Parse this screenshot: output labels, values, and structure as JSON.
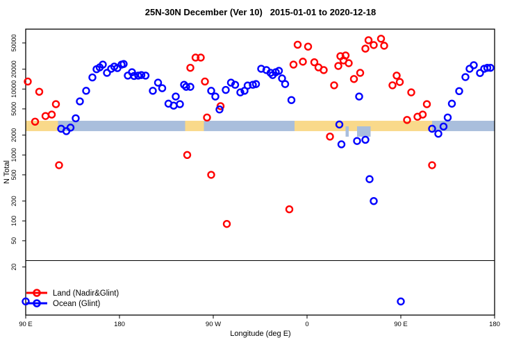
{
  "chart_data": {
    "type": "scatter",
    "title": "25N-30N December (Ver 10)   2015-01-01 to 2020-12-18",
    "xlabel": "Longitude (deg E)",
    "ylabel": "N Total",
    "x_axis": {
      "range_deg": [
        90,
        540
      ],
      "ticks": [
        {
          "deg": 90,
          "label": "90 E"
        },
        {
          "deg": 180,
          "label": "180"
        },
        {
          "deg": 270,
          "label": "90 W"
        },
        {
          "deg": 360,
          "label": "0"
        },
        {
          "deg": 450,
          "label": "90 E"
        },
        {
          "deg": 540,
          "label": "180"
        }
      ]
    },
    "y_axis": {
      "scale": "log10",
      "range": [
        4,
        80000
      ],
      "ticks": [
        20,
        50,
        100,
        200,
        500,
        1000,
        2000,
        5000,
        10000,
        20000,
        50000
      ]
    },
    "reference_line": {
      "y_value": 25,
      "color": "#000000"
    },
    "map_band": {
      "description": "land/ocean strip for 25N-30N latitude",
      "y_value_top": 3300,
      "y_value_bottom": 2300,
      "land_color": "#F9D98A",
      "ocean_color": "#A9BEDC",
      "segments": [
        {
          "from": 90,
          "to": 121,
          "type": "land"
        },
        {
          "from": 121,
          "to": 243,
          "type": "ocean"
        },
        {
          "from": 243,
          "to": 261,
          "type": "land"
        },
        {
          "from": 261,
          "to": 348,
          "type": "ocean"
        },
        {
          "from": 348,
          "to": 480,
          "type": "land"
        },
        {
          "from": 480,
          "to": 540,
          "type": "ocean"
        }
      ],
      "ocean_patches_below": [
        {
          "from": 397,
          "to": 400
        },
        {
          "from": 408,
          "to": 421
        }
      ]
    },
    "series": [
      {
        "name": "Land (Nadir&Glint)",
        "color": "#FF0000",
        "marker": "open-circle",
        "points": [
          [
            92,
            13000
          ],
          [
            103,
            9100
          ],
          [
            99,
            3200
          ],
          [
            109,
            3900
          ],
          [
            115,
            4100
          ],
          [
            119,
            5900
          ],
          [
            122,
            700
          ],
          [
            245,
            1000
          ],
          [
            248,
            21000
          ],
          [
            253,
            30000
          ],
          [
            258,
            30000
          ],
          [
            262,
            13000
          ],
          [
            264,
            3700
          ],
          [
            268,
            500
          ],
          [
            277,
            5500
          ],
          [
            283,
            90
          ],
          [
            343,
            150
          ],
          [
            347,
            23500
          ],
          [
            351,
            47000
          ],
          [
            356,
            26000
          ],
          [
            361,
            44000
          ],
          [
            367,
            25500
          ],
          [
            371,
            21300
          ],
          [
            376,
            19400
          ],
          [
            382,
            1900
          ],
          [
            386,
            11400
          ],
          [
            390,
            22400
          ],
          [
            392,
            31500
          ],
          [
            395,
            27200
          ],
          [
            397,
            32300
          ],
          [
            400,
            24700
          ],
          [
            405,
            14200
          ],
          [
            411,
            17600
          ],
          [
            416,
            41000
          ],
          [
            419,
            55000
          ],
          [
            424,
            46500
          ],
          [
            431,
            58000
          ],
          [
            434,
            45400
          ],
          [
            442,
            11400
          ],
          [
            446,
            16000
          ],
          [
            449,
            12800
          ],
          [
            456,
            3400
          ],
          [
            460,
            8900
          ],
          [
            466,
            3800
          ],
          [
            471,
            4100
          ],
          [
            475,
            5900
          ],
          [
            480,
            700
          ]
        ]
      },
      {
        "name": "Ocean (Glint)",
        "color": "#0000FF",
        "marker": "open-circle",
        "points": [
          [
            90,
            6
          ],
          [
            124,
            2500
          ],
          [
            129,
            2300
          ],
          [
            133,
            2600
          ],
          [
            138,
            3600
          ],
          [
            142,
            6500
          ],
          [
            148,
            9400
          ],
          [
            154,
            15000
          ],
          [
            158,
            20000
          ],
          [
            161,
            21300
          ],
          [
            164,
            23500
          ],
          [
            168,
            17600
          ],
          [
            172,
            20300
          ],
          [
            175,
            21900
          ],
          [
            178,
            20800
          ],
          [
            182,
            23500
          ],
          [
            184,
            24000
          ],
          [
            188,
            16000
          ],
          [
            192,
            18000
          ],
          [
            194,
            15800
          ],
          [
            198,
            16000
          ],
          [
            201,
            16300
          ],
          [
            205,
            16000
          ],
          [
            212,
            9400
          ],
          [
            217,
            12500
          ],
          [
            221,
            10300
          ],
          [
            227,
            6000
          ],
          [
            232,
            5600
          ],
          [
            234,
            7700
          ],
          [
            238,
            5900
          ],
          [
            242,
            11600
          ],
          [
            244,
            10800
          ],
          [
            248,
            10800
          ],
          [
            268,
            9400
          ],
          [
            272,
            7700
          ],
          [
            276,
            4900
          ],
          [
            282,
            9700
          ],
          [
            287,
            12500
          ],
          [
            291,
            11600
          ],
          [
            296,
            8900
          ],
          [
            300,
            9400
          ],
          [
            303,
            11300
          ],
          [
            308,
            11600
          ],
          [
            311,
            11900
          ],
          [
            316,
            20300
          ],
          [
            321,
            19400
          ],
          [
            325,
            17600
          ],
          [
            327,
            16300
          ],
          [
            330,
            18000
          ],
          [
            333,
            18900
          ],
          [
            336,
            14500
          ],
          [
            339,
            11900
          ],
          [
            345,
            6800
          ],
          [
            391,
            2900
          ],
          [
            393,
            1450
          ],
          [
            408,
            1630
          ],
          [
            410,
            7700
          ],
          [
            416,
            1700
          ],
          [
            420,
            430
          ],
          [
            424,
            200
          ],
          [
            450,
            6
          ],
          [
            480,
            2500
          ],
          [
            486,
            2100
          ],
          [
            491,
            2700
          ],
          [
            495,
            3700
          ],
          [
            499,
            6000
          ],
          [
            506,
            9300
          ],
          [
            512,
            15200
          ],
          [
            516,
            20300
          ],
          [
            520,
            23000
          ],
          [
            526,
            17500
          ],
          [
            530,
            20300
          ],
          [
            533,
            21000
          ],
          [
            536,
            21000
          ]
        ]
      }
    ],
    "legend": {
      "position": "bottom-left"
    }
  }
}
